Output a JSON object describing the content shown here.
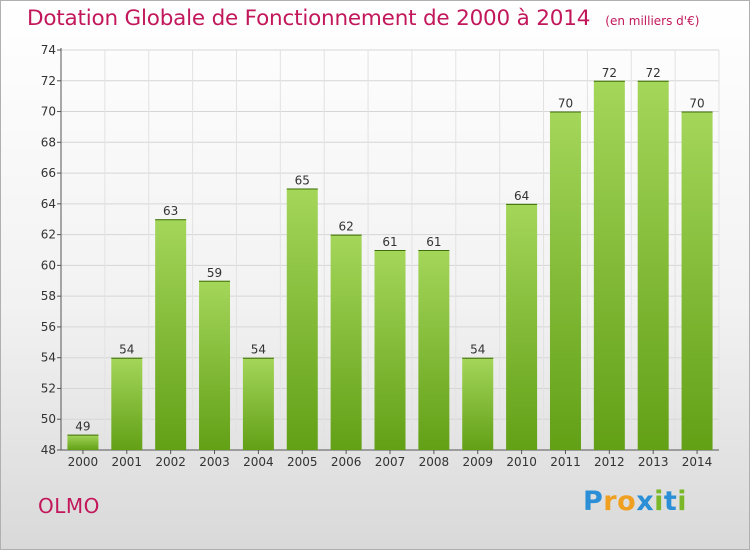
{
  "header": {
    "title": "Dotation Globale de Fonctionnement de 2000 à 2014",
    "subtitle": "(en milliers d'€)"
  },
  "footer": {
    "commune": "OLMO",
    "logo": {
      "letters": [
        "P",
        "r",
        "o",
        "x",
        "i",
        "t",
        "i"
      ]
    }
  },
  "colors": {
    "title": "#c2185b",
    "bar_top": "#a4d65a",
    "bar_bottom": "#62a016",
    "logo_letters": [
      "#2a8fd6",
      "#f0a020",
      "#f0a020",
      "#2a8fd6",
      "#7ab82a",
      "#2a8fd6",
      "#7ab82a"
    ]
  },
  "chart_data": {
    "type": "bar",
    "categories": [
      "2000",
      "2001",
      "2002",
      "2003",
      "2004",
      "2005",
      "2006",
      "2007",
      "2008",
      "2009",
      "2010",
      "2011",
      "2012",
      "2013",
      "2014"
    ],
    "values": [
      49,
      54,
      63,
      59,
      54,
      65,
      62,
      61,
      61,
      54,
      64,
      70,
      72,
      72,
      70
    ],
    "title": "Dotation Globale de Fonctionnement de 2000 à 2014",
    "ylim": [
      48,
      74
    ],
    "yticks": [
      48,
      50,
      52,
      54,
      56,
      58,
      60,
      62,
      64,
      66,
      68,
      70,
      72,
      74
    ],
    "grid": true,
    "legend": "none",
    "data_labels": true
  }
}
